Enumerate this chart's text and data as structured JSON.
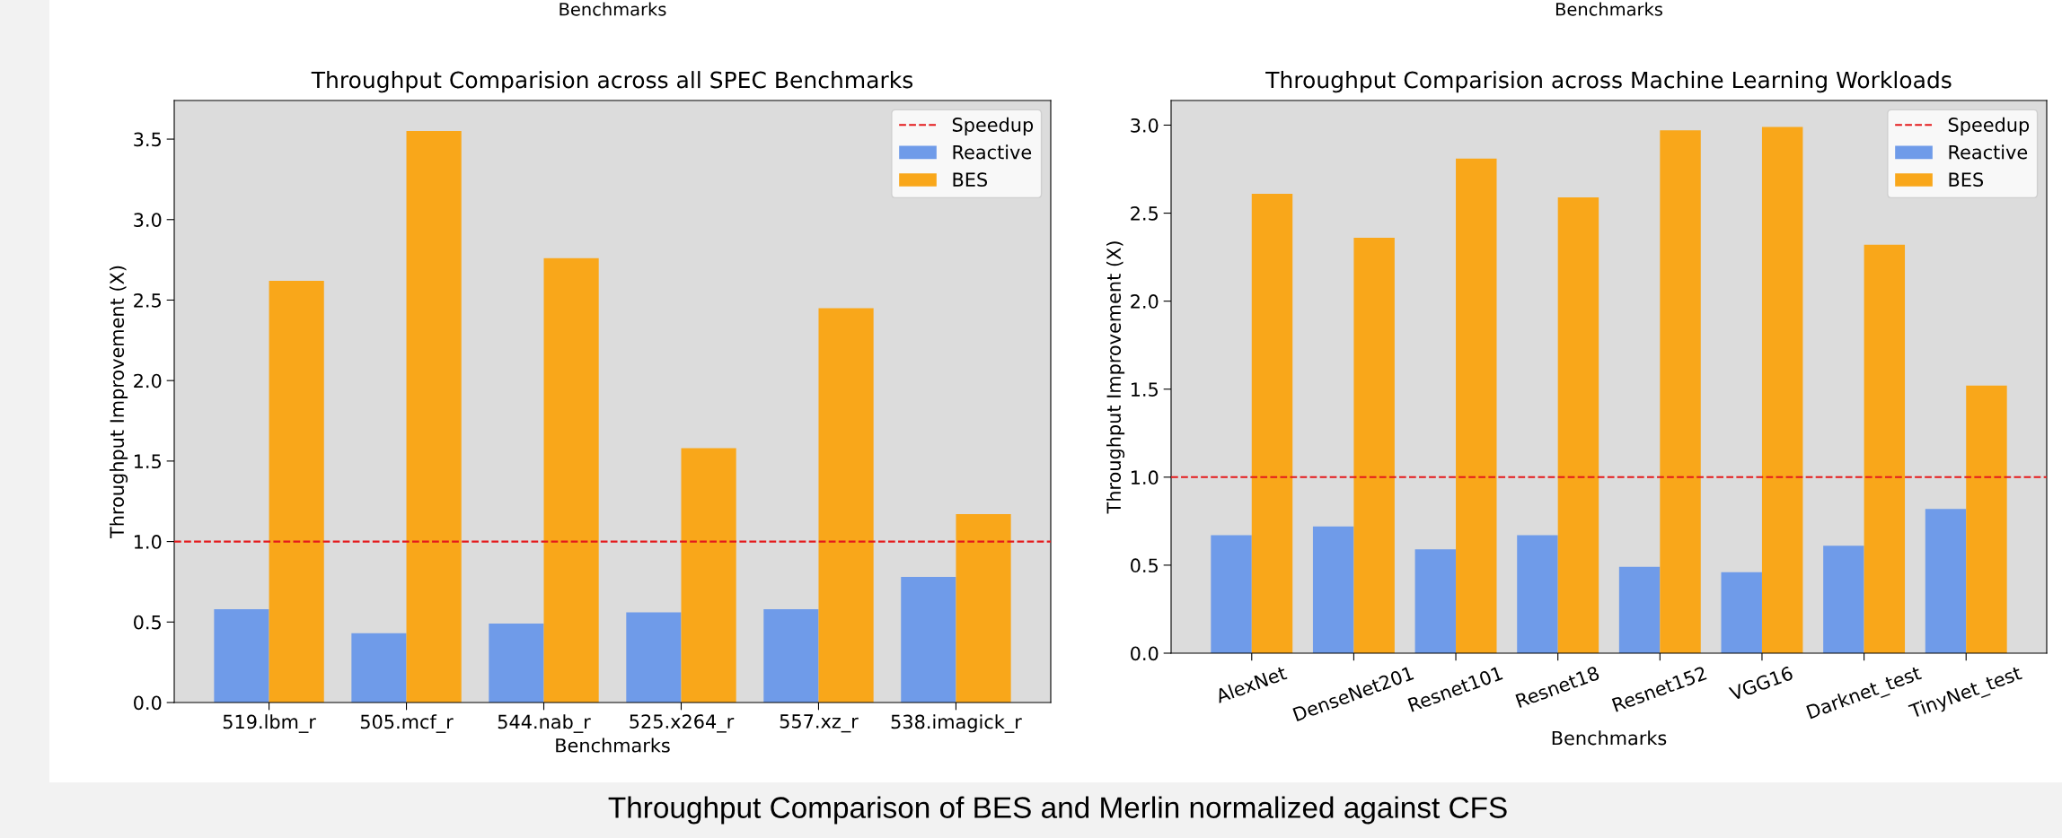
{
  "chart_data": [
    {
      "type": "bar",
      "title": "Throughput Comparision across all SPEC Benchmarks",
      "xlabel": "Benchmarks",
      "ylabel": "Throughput Improvement (X)",
      "categories": [
        "519.lbm_r",
        "505.mcf_r",
        "544.nab_r",
        "525.x264_r",
        "557.xz_r",
        "538.imagick_r"
      ],
      "series": [
        {
          "name": "Reactive",
          "color": "#6f9be9",
          "values": [
            0.58,
            0.43,
            0.49,
            0.56,
            0.58,
            0.78
          ]
        },
        {
          "name": "BES",
          "color": "#f9a71a",
          "values": [
            2.62,
            3.55,
            2.76,
            1.58,
            2.45,
            1.17
          ]
        }
      ],
      "ylim": [
        0,
        3.74
      ],
      "yticks": [
        {
          "value": 0,
          "label": "0.0"
        },
        0.5,
        {
          "value": 1,
          "label": "1.0"
        },
        1.5,
        {
          "value": 2,
          "label": "2.0"
        },
        2.5,
        {
          "value": 3,
          "label": "3.0"
        },
        3.5
      ],
      "ref_lines": [
        {
          "axis": "y",
          "value": 1.0,
          "label": "Speedup",
          "color": "#e41a1c",
          "line_style": "dashed"
        }
      ],
      "legend": "top right",
      "grid": false,
      "annotations": [
        "Benchmarks",
        "Throughput Comparison of BES and Merlin normalized against CFS"
      ]
    },
    {
      "type": "bar",
      "title": "Throughput Comparision across Machine Learning Workloads",
      "xlabel": "Benchmarks",
      "ylabel": "Throughput Improvement (X)",
      "categories": [
        "AlexNet",
        "DenseNet201",
        "Resnet101",
        "Resnet18",
        "Resnet152",
        "VGG16",
        "Darknet_test",
        "TinyNet_test"
      ],
      "series": [
        {
          "name": "Reactive",
          "color": "#6f9be9",
          "values": [
            0.67,
            0.72,
            0.59,
            0.67,
            0.49,
            0.46,
            0.61,
            0.82
          ]
        },
        {
          "name": "BES",
          "color": "#f9a71a",
          "values": [
            2.61,
            2.36,
            2.81,
            2.59,
            2.97,
            2.99,
            2.32,
            1.52
          ]
        }
      ],
      "ylim": [
        0,
        3.14
      ],
      "yticks": [
        {
          "value": 0,
          "label": "0.0"
        },
        0.5,
        {
          "value": 1,
          "label": "1.0"
        },
        1.5,
        {
          "value": 2,
          "label": "2.0"
        },
        2.5,
        {
          "value": 3,
          "label": "3.0"
        }
      ],
      "ref_lines": [
        {
          "axis": "y",
          "value": 1.0,
          "label": "Speedup",
          "color": "#e41a1c",
          "line_style": "dashed"
        }
      ],
      "legend": "top right",
      "grid": false,
      "annotations": [
        "Benchmarks"
      ]
    }
  ]
}
